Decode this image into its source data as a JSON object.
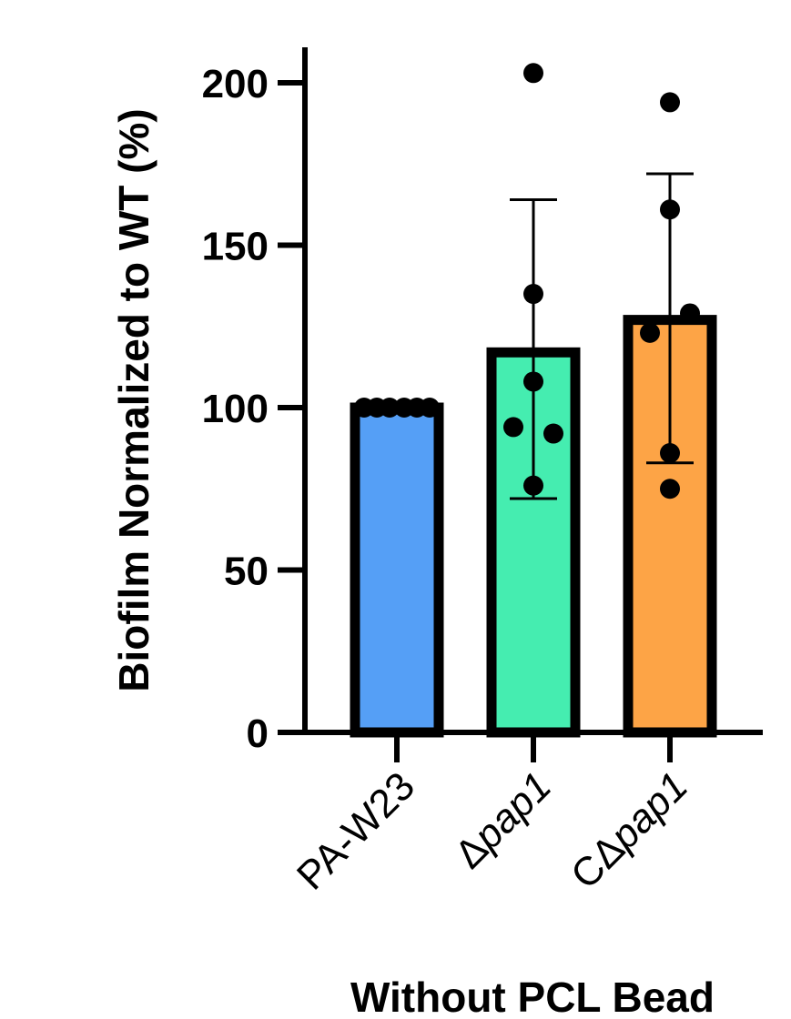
{
  "chart_data": {
    "type": "bar",
    "title": "",
    "ylabel": "Biofilm Normalized to  WT (%)",
    "xlabel": "Without PCL Bead",
    "ylim": [
      0,
      210
    ],
    "yticks": [
      0,
      50,
      100,
      150,
      200
    ],
    "ytick_labels": [
      "0",
      "50",
      "100",
      "150",
      "200"
    ],
    "grid": false,
    "categories": [
      {
        "prefix": "PA-W23",
        "italic": ""
      },
      {
        "prefix": "Δ",
        "italic": "pap1"
      },
      {
        "prefix": "CΔ",
        "italic": "pap1"
      }
    ],
    "values": [
      100,
      117,
      127
    ],
    "error_bars": [
      {
        "lower": 100,
        "upper": 100
      },
      {
        "lower": 72,
        "upper": 164
      },
      {
        "lower": 83,
        "upper": 172
      }
    ],
    "points": [
      [
        100,
        100,
        100,
        100,
        100,
        100
      ],
      [
        203,
        135,
        108,
        94,
        92,
        76
      ],
      [
        194,
        161,
        129,
        123,
        86,
        75
      ]
    ],
    "colors": [
      "#559ff6",
      "#45edb0",
      "#fda446"
    ]
  }
}
